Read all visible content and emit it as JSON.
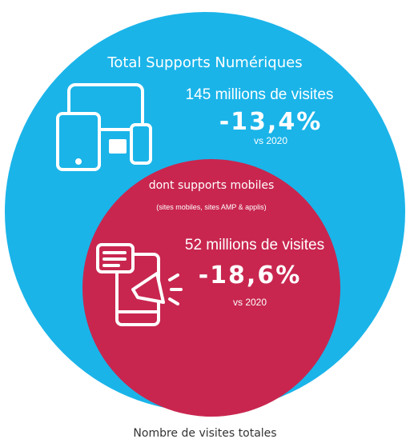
{
  "total": {
    "title": "Total Supports Numériques",
    "visits": "145 millions de visites",
    "change": "-13,4%",
    "comparison": "vs 2020"
  },
  "mobile": {
    "title": "dont supports mobiles",
    "subtitle": "(sites mobiles, sites AMP & applis)",
    "visits": "52 millions de visites",
    "change": "-18,6%",
    "comparison": "vs 2020"
  },
  "caption": "Nombre de visites totales"
}
